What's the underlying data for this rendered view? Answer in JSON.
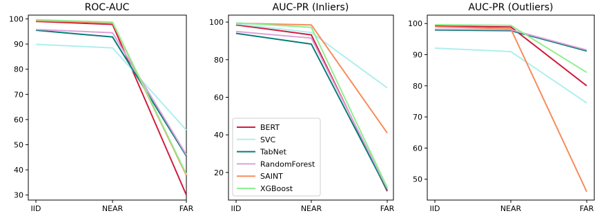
{
  "chart_data": [
    {
      "type": "line",
      "title": "ROC-AUC",
      "categories": [
        "IID",
        "NEAR",
        "FAR"
      ],
      "ylim": [
        28,
        101.5
      ],
      "yticks": [
        30,
        40,
        50,
        60,
        70,
        80,
        90,
        100
      ],
      "grid": false,
      "series": [
        {
          "name": "BERT",
          "color": "#d01c3c",
          "values": [
            99.0,
            97.8,
            30.0
          ]
        },
        {
          "name": "SVC",
          "color": "#aeeeee",
          "values": [
            89.9,
            88.5,
            55.8
          ]
        },
        {
          "name": "TabNet",
          "color": "#047d75",
          "values": [
            95.5,
            92.8,
            45.5
          ]
        },
        {
          "name": "RandomForest",
          "color": "#dda0dd",
          "values": [
            95.8,
            94.5,
            46.0
          ]
        },
        {
          "name": "SAINT",
          "color": "#f98b5a",
          "values": [
            99.3,
            98.5,
            37.8
          ]
        },
        {
          "name": "XGBoost",
          "color": "#90ee90",
          "values": [
            99.7,
            98.7,
            38.3
          ]
        }
      ]
    },
    {
      "type": "line",
      "title": "AUC-PR (Inliers)",
      "categories": [
        "IID",
        "NEAR",
        "FAR"
      ],
      "ylim": [
        5.3,
        103.7
      ],
      "yticks": [
        20,
        40,
        60,
        80,
        100
      ],
      "grid": false,
      "legend_position": "lower-left",
      "series": [
        {
          "name": "BERT",
          "color": "#d01c3c",
          "values": [
            98.5,
            93.2,
            10.0
          ]
        },
        {
          "name": "SVC",
          "color": "#aeeeee",
          "values": [
            99.0,
            94.5,
            65.0
          ]
        },
        {
          "name": "TabNet",
          "color": "#047d75",
          "values": [
            94.0,
            88.3,
            10.5
          ]
        },
        {
          "name": "RandomForest",
          "color": "#dda0dd",
          "values": [
            95.0,
            91.5,
            11.5
          ]
        },
        {
          "name": "SAINT",
          "color": "#f98b5a",
          "values": [
            99.4,
            98.5,
            41.0
          ]
        },
        {
          "name": "XGBoost",
          "color": "#90ee90",
          "values": [
            99.6,
            97.2,
            12.0
          ]
        }
      ]
    },
    {
      "type": "line",
      "title": "AUC-PR (Outliers)",
      "categories": [
        "IID",
        "NEAR",
        "FAR"
      ],
      "ylim": [
        43.3,
        102.7
      ],
      "yticks": [
        50,
        60,
        70,
        80,
        90,
        100
      ],
      "grid": false,
      "series": [
        {
          "name": "BERT",
          "color": "#d01c3c",
          "values": [
            99.2,
            98.9,
            80.0
          ]
        },
        {
          "name": "SVC",
          "color": "#aeeeee",
          "values": [
            92.1,
            91.0,
            74.5
          ]
        },
        {
          "name": "TabNet",
          "color": "#047d75",
          "values": [
            97.9,
            97.7,
            91.2
          ]
        },
        {
          "name": "RandomForest",
          "color": "#dda0dd",
          "values": [
            98.2,
            98.0,
            91.5
          ]
        },
        {
          "name": "SAINT",
          "color": "#f98b5a",
          "values": [
            99.0,
            98.3,
            46.0
          ]
        },
        {
          "name": "XGBoost",
          "color": "#90ee90",
          "values": [
            99.6,
            99.4,
            84.3
          ]
        }
      ]
    }
  ]
}
